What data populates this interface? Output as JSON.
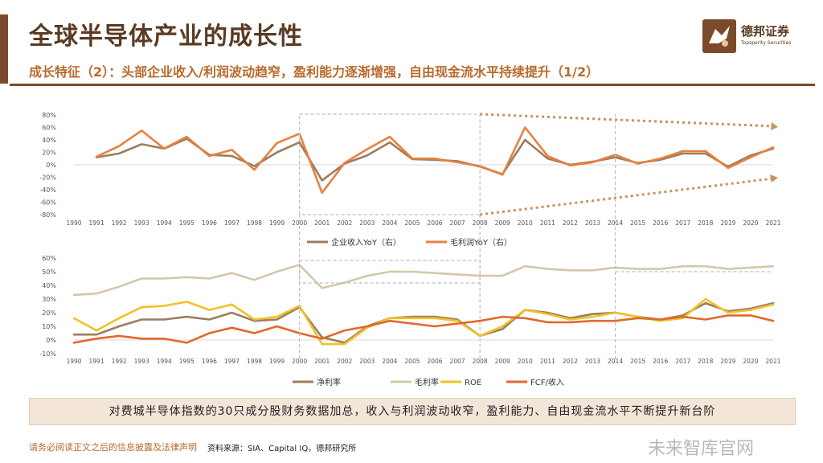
{
  "header": {
    "title": "全球半导体产业的成长性",
    "subtitle": "成长特征（2）：头部企业收入/利润波动趋窄，盈利能力逐渐增强，自由现金流水平持续提升（1/2）",
    "logo_text": "德邦证券",
    "logo_en": "Topsperity Securities"
  },
  "colors": {
    "brand": "#7b4a2a",
    "accent": "#b86a2b",
    "series_brown": "#9c7d5e",
    "series_orange": "#e8803e",
    "series_beige": "#d3c8a8",
    "series_yellow": "#f2c125",
    "series_red_orange": "#e2692a"
  },
  "summary": "对费城半导体指数的30只成分股财务数据加总，收入与利润波动收窄，盈利能力、自由现金流水平不断提升新台阶",
  "footer": {
    "disclaimer": "请务必阅读正文之后的信息披露及法律声明",
    "source": "资料来源：SIA、Capital IQ，德邦研究所",
    "watermark": "未来智库官网"
  },
  "chart_data": [
    {
      "type": "line",
      "x": [
        "1990",
        "1991",
        "1992",
        "1993",
        "1994",
        "1995",
        "1996",
        "1997",
        "1998",
        "1999",
        "2000",
        "2001",
        "2002",
        "2003",
        "2004",
        "2005",
        "2006",
        "2007",
        "2008",
        "2009",
        "2010",
        "2011",
        "2012",
        "2013",
        "2014",
        "2015",
        "2016",
        "2017",
        "2018",
        "2019",
        "2020",
        "2021"
      ],
      "ylim": [
        -80,
        80
      ],
      "yticks": [
        "80%",
        "60%",
        "40%",
        "20%",
        "0%",
        "-20%",
        "-40%",
        "-60%",
        "-80%"
      ],
      "series": [
        {
          "name": "企业收入YoY（右）",
          "color": "#9c7d5e",
          "values": [
            null,
            12,
            18,
            33,
            26,
            42,
            16,
            14,
            -2,
            20,
            36,
            -25,
            2,
            15,
            36,
            9,
            8,
            6,
            -3,
            -15,
            40,
            10,
            0,
            5,
            12,
            3,
            8,
            18,
            18,
            -3,
            15,
            26
          ]
        },
        {
          "name": "毛利润YoY（右）",
          "color": "#e8803e",
          "values": [
            null,
            13,
            30,
            55,
            26,
            45,
            14,
            24,
            -8,
            35,
            50,
            -45,
            3,
            25,
            45,
            10,
            10,
            4,
            -2,
            -16,
            60,
            14,
            -1,
            4,
            16,
            2,
            10,
            22,
            22,
            -5,
            12,
            28
          ]
        }
      ]
    },
    {
      "type": "line",
      "x": [
        "1990",
        "1991",
        "1992",
        "1993",
        "1994",
        "1995",
        "1996",
        "1997",
        "1998",
        "1999",
        "2000",
        "2001",
        "2002",
        "2003",
        "2004",
        "2005",
        "2006",
        "2007",
        "2008",
        "2009",
        "2010",
        "2011",
        "2012",
        "2013",
        "2014",
        "2015",
        "2016",
        "2017",
        "2018",
        "2019",
        "2020",
        "2021"
      ],
      "ylim": [
        -10,
        60
      ],
      "yticks": [
        "60%",
        "50%",
        "40%",
        "30%",
        "20%",
        "10%",
        "0%",
        "-10%"
      ],
      "series": [
        {
          "name": "净利率",
          "color": "#9c7d5e",
          "values": [
            4,
            4,
            10,
            15,
            15,
            17,
            15,
            20,
            14,
            15,
            24,
            2,
            -2,
            10,
            16,
            17,
            17,
            15,
            3,
            8,
            22,
            20,
            16,
            19,
            20,
            17,
            15,
            18,
            27,
            21,
            23,
            27
          ]
        },
        {
          "name": "毛利率",
          "color": "#d3c8a8",
          "values": [
            33,
            34,
            39,
            45,
            45,
            46,
            45,
            49,
            44,
            50,
            55,
            38,
            42,
            47,
            50,
            50,
            49,
            48,
            47,
            47,
            54,
            52,
            51,
            51,
            53,
            52,
            52,
            54,
            54,
            52,
            53,
            54
          ]
        },
        {
          "name": "ROE",
          "color": "#f2c125",
          "values": [
            16,
            7,
            16,
            24,
            25,
            28,
            22,
            26,
            15,
            17,
            25,
            -3,
            -3,
            9,
            16,
            16,
            16,
            14,
            3,
            10,
            22,
            19,
            15,
            17,
            20,
            17,
            14,
            16,
            30,
            20,
            22,
            26
          ]
        },
        {
          "name": "FCF/收入",
          "color": "#e2692a",
          "values": [
            -2,
            1,
            3,
            1,
            1,
            -2,
            5,
            9,
            5,
            10,
            5,
            1,
            7,
            10,
            14,
            12,
            10,
            12,
            14,
            17,
            16,
            13,
            13,
            14,
            14,
            16,
            15,
            17,
            15,
            18,
            18,
            14
          ]
        }
      ]
    }
  ]
}
